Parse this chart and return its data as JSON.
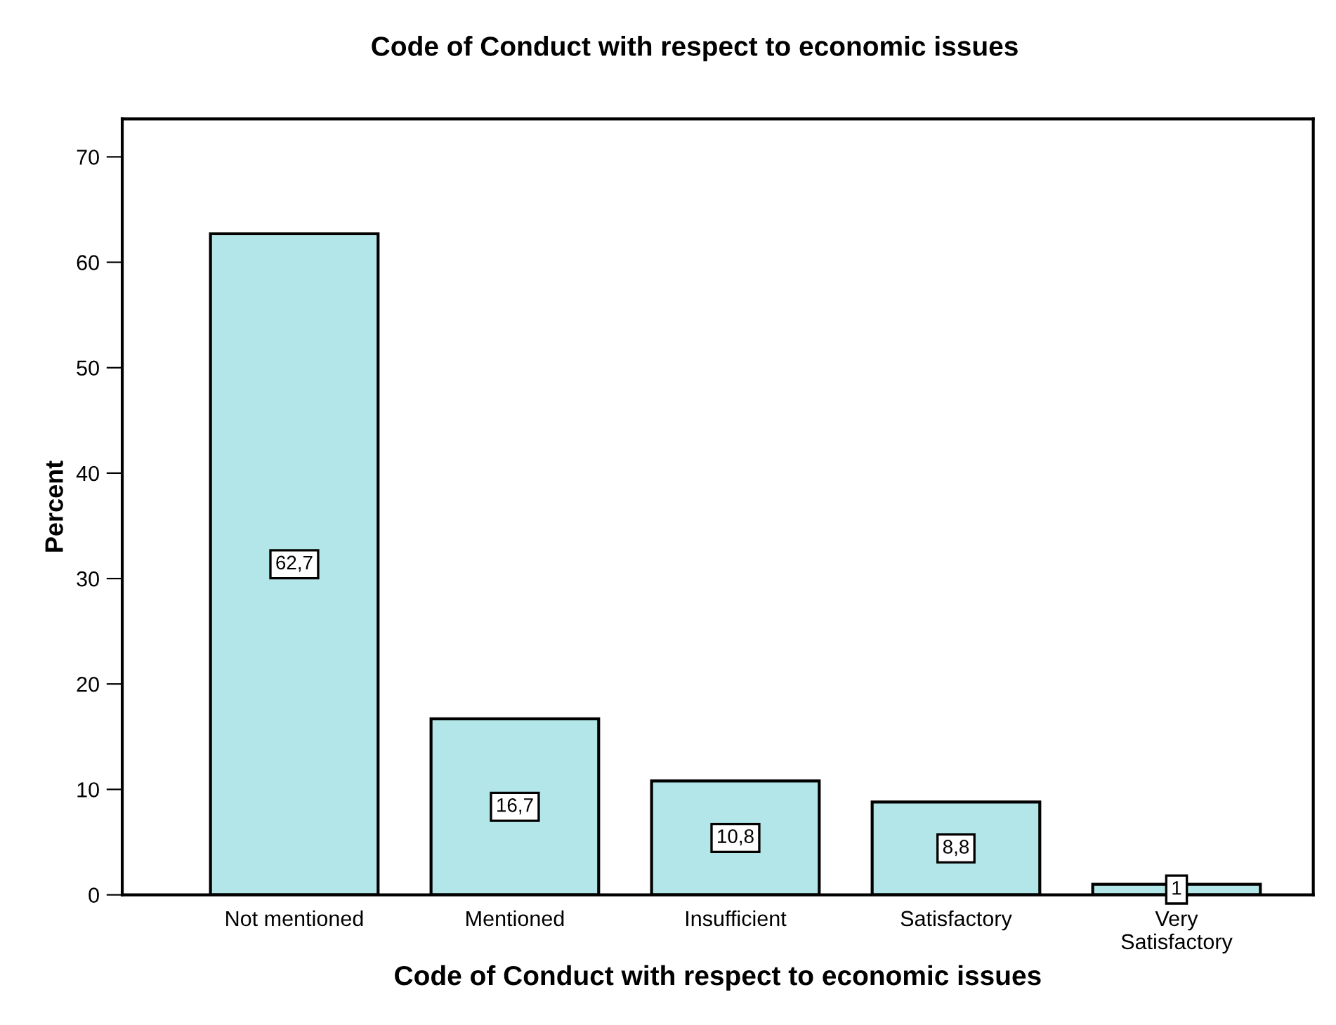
{
  "chart_data": {
    "type": "bar",
    "title": "Code of Conduct with respect to economic issues",
    "xlabel": "Code of Conduct with respect to economic issues",
    "ylabel": "Percent",
    "categories": [
      "Not mentioned",
      "Mentioned",
      "Insufficient",
      "Satisfactory",
      "Very\nSatisfactory"
    ],
    "values": [
      62.7,
      16.7,
      10.8,
      8.8,
      1.0
    ],
    "value_labels": [
      "62,7",
      "16,7",
      "10,8",
      "8,8",
      "1"
    ],
    "color": "#b3e6e8",
    "ylim": [
      0,
      73.6
    ],
    "yticks": [
      0,
      10,
      20,
      30,
      40,
      50,
      60,
      70
    ],
    "grid": false
  }
}
